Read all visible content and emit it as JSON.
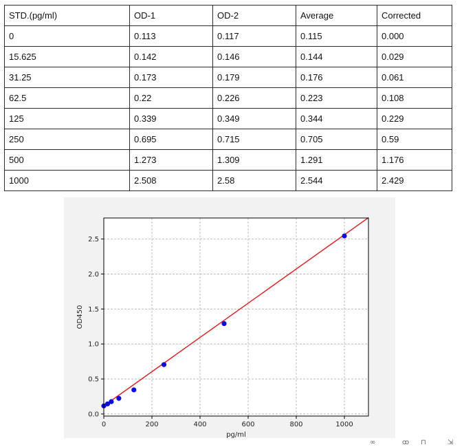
{
  "table": {
    "headers": [
      "STD.(pg/ml)",
      "OD-1",
      "OD-2",
      "Average",
      "Corrected"
    ],
    "rows": [
      [
        "0",
        "0.113",
        "0.117",
        "0.115",
        "0.000"
      ],
      [
        "15.625",
        "0.142",
        "0.146",
        "0.144",
        "0.029"
      ],
      [
        "31.25",
        "0.173",
        "0.179",
        "0.176",
        "0.061"
      ],
      [
        "62.5",
        "0.22",
        "0.226",
        "0.223",
        "0.108"
      ],
      [
        "125",
        "0.339",
        "0.349",
        "0.344",
        "0.229"
      ],
      [
        "250",
        "0.695",
        "0.715",
        "0.705",
        "0.59"
      ],
      [
        "500",
        "1.273",
        "1.309",
        "1.291",
        "1.176"
      ],
      [
        "1000",
        "2.508",
        "2.58",
        "2.544",
        "2.429"
      ]
    ]
  },
  "chart_data": {
    "type": "scatter",
    "title": "",
    "xlabel": "pg/ml",
    "ylabel": "OD450",
    "xlim": [
      0,
      1100
    ],
    "ylim": [
      -0.03,
      2.8
    ],
    "xticks": [
      "0",
      "200",
      "400",
      "600",
      "800",
      "1000"
    ],
    "xtick_values": [
      0,
      200,
      400,
      600,
      800,
      1000
    ],
    "yticks": [
      "0.0",
      "0.5",
      "1.0",
      "1.5",
      "2.0",
      "2.5"
    ],
    "ytick_values": [
      0,
      0.5,
      1.0,
      1.5,
      2.0,
      2.5
    ],
    "grid": true,
    "points": {
      "x": [
        0,
        15.625,
        31.25,
        62.5,
        125,
        250,
        500,
        1000
      ],
      "y": [
        0.115,
        0.144,
        0.176,
        0.223,
        0.344,
        0.705,
        1.291,
        2.544
      ],
      "color": "#0b0bd9"
    },
    "fit_line": {
      "x": [
        0,
        1100
      ],
      "y": [
        0.115,
        2.805
      ],
      "color": "#d62728"
    }
  },
  "toolbar": {
    "icons": [
      "link-icon",
      "glasses-icon",
      "delete-icon",
      "expand-icon"
    ]
  }
}
